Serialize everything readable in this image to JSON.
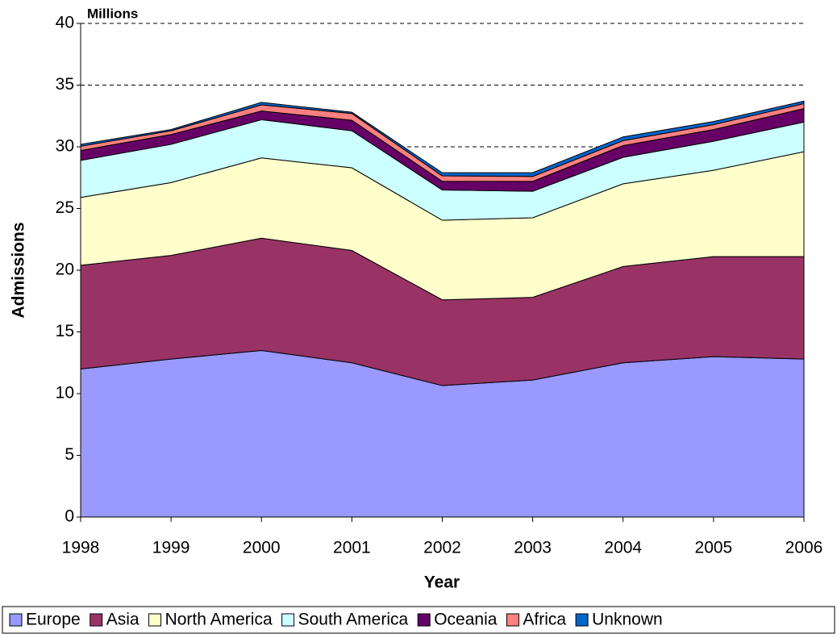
{
  "chart_data": {
    "type": "stacked-area",
    "y_label": "Admissions",
    "x_label": "Year",
    "annotation": "Millions",
    "categories": [
      "1998",
      "1999",
      "2000",
      "2001",
      "2002",
      "2003",
      "2004",
      "2005",
      "2006"
    ],
    "ylim": [
      0,
      40
    ],
    "yticks": [
      0,
      5,
      10,
      15,
      20,
      25,
      30,
      35,
      40
    ],
    "grid": true,
    "series": [
      {
        "name": "Europe",
        "color": "#9999ff",
        "values": [
          12.0,
          12.8,
          13.5,
          12.5,
          10.65,
          11.1,
          12.5,
          13.0,
          12.8
        ]
      },
      {
        "name": "Asia",
        "color": "#993366",
        "values": [
          8.4,
          8.4,
          9.1,
          9.1,
          6.95,
          6.7,
          7.8,
          8.1,
          8.3
        ]
      },
      {
        "name": "North America",
        "color": "#ffffcc",
        "values": [
          5.5,
          5.9,
          6.5,
          6.7,
          6.45,
          6.45,
          6.7,
          7.0,
          8.5
        ]
      },
      {
        "name": "South America",
        "color": "#ccffff",
        "values": [
          3.0,
          3.1,
          3.1,
          3.0,
          2.45,
          2.15,
          2.15,
          2.35,
          2.4
        ]
      },
      {
        "name": "Oceania",
        "color": "#660066",
        "values": [
          0.8,
          0.8,
          0.7,
          0.85,
          0.7,
          0.8,
          0.95,
          0.95,
          1.1
        ]
      },
      {
        "name": "Africa",
        "color": "#ff8080",
        "values": [
          0.35,
          0.3,
          0.5,
          0.55,
          0.45,
          0.4,
          0.4,
          0.4,
          0.4
        ]
      },
      {
        "name": "Unknown",
        "color": "#0066cc",
        "values": [
          0.15,
          0.1,
          0.2,
          0.1,
          0.25,
          0.3,
          0.3,
          0.25,
          0.2
        ]
      }
    ]
  }
}
